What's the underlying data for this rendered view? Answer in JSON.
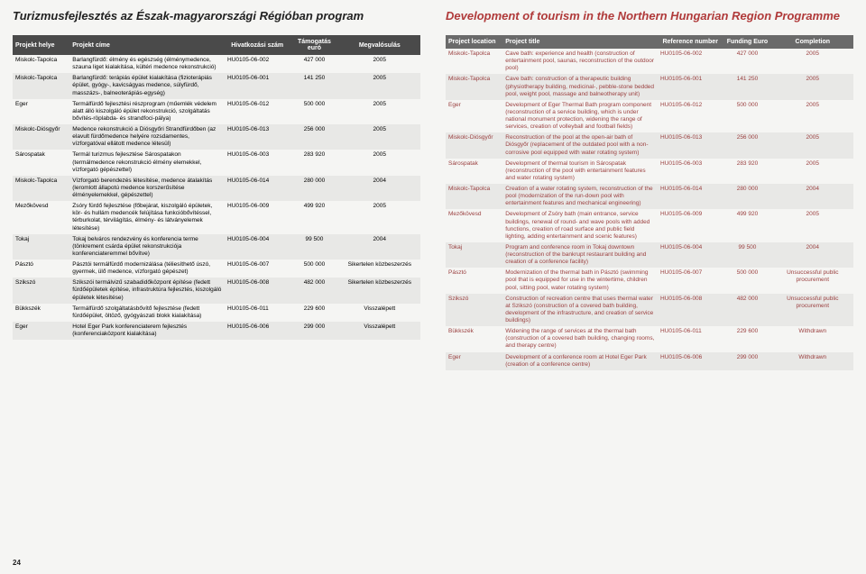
{
  "page_number": "24",
  "left": {
    "heading": "Turizmusfejlesztés az Észak-magyarországi Régióban program",
    "headers": [
      "Projekt helye",
      "Projekt címe",
      "Hivatkozási szám",
      "Támogatás euró",
      "Megvalósulás"
    ],
    "rows": [
      {
        "loc": "Miskolc-Tapolca",
        "title": "Barlangfürdő: élmény és egészség (élménymedence, szauna liget kialakítása, kültéri medence rekonstrukció)",
        "ref": "HU0105-06-002",
        "amt": "427 000",
        "stat": "2005",
        "stripe": false
      },
      {
        "loc": "Miskolc-Tapolca",
        "title": "Barlangfürdő: terápiás épület kialakítása (fizioterápiás épület, gyógy-, kavicságyas medence, súlyfürdő, masszázs-, balneoterápiás-egység)",
        "ref": "HU0105-06-001",
        "amt": "141 250",
        "stat": "2005",
        "stripe": true
      },
      {
        "loc": "Eger",
        "title": "Termálfürdő fejlesztési részprogram (műemlék védelem alatt álló kiszolgáló épület rekonstrukció, szolgáltatás bővítés-röplabda- és strandfoci-pálya)",
        "ref": "HU0105-06-012",
        "amt": "500 000",
        "stat": "2005",
        "stripe": false
      },
      {
        "loc": "Miskolc-Diósgyőr",
        "title": "Medence rekonstrukció a Diósgyőri Strandfürdőben (az elavult fürdőmedence helyére rozsdamentes, vízforgatóval ellátott medence létesül)",
        "ref": "HU0105-06-013",
        "amt": "256 000",
        "stat": "2005",
        "stripe": true
      },
      {
        "loc": "Sárospatak",
        "title": "Termál turizmus fejlesztése Sárospatakon (termálmedence rekonstrukció élmény elemekkel, vízforgató gépészettel)",
        "ref": "HU0105-06-003",
        "amt": "283 920",
        "stat": "2005",
        "stripe": false
      },
      {
        "loc": "Miskolc-Tapolca",
        "title": "Vízforgató berendezés létesítése, medence átalakítás (leromlott állapotú medence korszerűsítése élményelemekkel, gépészettel)",
        "ref": "HU0105-06-014",
        "amt": "280 000",
        "stat": "2004",
        "stripe": true
      },
      {
        "loc": "Mezőkövesd",
        "title": "Zsóry fürdő fejlesztése (főbejárat, kiszolgáló épületek, kör- és hullám medencék felújítása funkcióbővítéssel, térburkolat, térvilágítás, élmény- és látványelemek létesítése)",
        "ref": "HU0105-06-009",
        "amt": "499 920",
        "stat": "2005",
        "stripe": false
      },
      {
        "loc": "Tokaj",
        "title": "Tokaj belváros rendezvény és konferencia terme (tönkrement csárda épület rekonstrukciója konferenciateremmel bővítve)",
        "ref": "HU0105-06-004",
        "amt": "99 500",
        "stat": "2004",
        "stripe": true
      },
      {
        "loc": "Pásztó",
        "title": "Pásztói termálfürdő modernizálása (téliesíthető úszó, gyermek, ülő medence, vízforgató gépészet)",
        "ref": "HU0105-06-007",
        "amt": "500 000",
        "stat": "Sikertelen közbeszerzés",
        "stripe": false
      },
      {
        "loc": "Szikszó",
        "title": "Szikszói termálvizű szabadidőközpont építése (fedett fürdőépületek építése, infrastruktúra fejlesztés, kiszolgáló épületek létesítése)",
        "ref": "HU0105-06-008",
        "amt": "482 000",
        "stat": "Sikertelen közbeszerzés",
        "stripe": true
      },
      {
        "loc": "Bükkszék",
        "title": "Termálfürdő szolgáltatásbővítő fejlesztése (fedett fürdőépület, öltöző, gyógyászati blokk kialakítása)",
        "ref": "HU0105-06-011",
        "amt": "229 600",
        "stat": "Visszalépett",
        "stripe": false
      },
      {
        "loc": "Eger",
        "title": "Hotel Eger Park konferenciaterem fejlesztés (konferenciaközpont kialakítása)",
        "ref": "HU0105-06-006",
        "amt": "299 000",
        "stat": "Visszalépett",
        "stripe": true
      }
    ]
  },
  "right": {
    "heading": "Development of tourism in the Northern Hungarian Region Programme",
    "headers": [
      "Project location",
      "Project title",
      "Reference number",
      "Funding Euro",
      "Completion"
    ],
    "rows": [
      {
        "loc": "Miskolc-Tapolca",
        "title": "Cave bath: experience and health (construction of entertainment pool, saunas, reconstruction of the outdoor pool)",
        "ref": "HU0105-06-002",
        "amt": "427 000",
        "stat": "2005",
        "stripe": false
      },
      {
        "loc": "Miskolc-Tapolca",
        "title": "Cave bath: construction of a therapeutic building (physiotherapy building, medicinal-, pebble-stone bedded pool, weight pool, massage and balneotherapy unit)",
        "ref": "HU0105-06-001",
        "amt": "141 250",
        "stat": "2005",
        "stripe": true
      },
      {
        "loc": "Eger",
        "title": "Development of Eger Thermal Bath program component (reconstruction of a service building, which is under national monument protection, widening the range of services, creation of volleyball and football fields)",
        "ref": "HU0105-06-012",
        "amt": "500 000",
        "stat": "2005",
        "stripe": false
      },
      {
        "loc": "Miskolc-Diósgyőr",
        "title": "Reconstruction of the pool at the open-air bath of Diósgyőr (replacement of the outdated pool with a non-corrosive pool equipped with water rotating system)",
        "ref": "HU0105-06-013",
        "amt": "256 000",
        "stat": "2005",
        "stripe": true
      },
      {
        "loc": "Sárospatak",
        "title": "Development of thermal tourism in Sárospatak (reconstruction of the pool with entertainment features and water rotating system)",
        "ref": "HU0105-06-003",
        "amt": "283 920",
        "stat": "2005",
        "stripe": false
      },
      {
        "loc": "Miskolc-Tapolca",
        "title": "Creation of a water rotating system, reconstruction of the pool (modernization of the run-down pool with entertainment features and mechanical engineering)",
        "ref": "HU0105-06-014",
        "amt": "280 000",
        "stat": "2004",
        "stripe": true
      },
      {
        "loc": "Mezőkövesd",
        "title": "Development of Zsóry bath (main entrance, service buildings, renewal of round- and wave pools with added functions, creation of road surface and public field lighting, adding entertainment and scenic features)",
        "ref": "HU0105-06-009",
        "amt": "499 920",
        "stat": "2005",
        "stripe": false
      },
      {
        "loc": "Tokaj",
        "title": "Program and conference room in Tokaj downtown (reconstruction of the bankrupt restaurant building and creation of a conference facility)",
        "ref": "HU0105-06-004",
        "amt": "99 500",
        "stat": "2004",
        "stripe": true
      },
      {
        "loc": "Pásztó",
        "title": "Modernization of the thermal bath in Pásztó (swimming pool that is equipped for use in the wintertime, children pool, sitting pool, water rotating system)",
        "ref": "HU0105-06-007",
        "amt": "500 000",
        "stat": "Unsuccessful public procurement",
        "stripe": false
      },
      {
        "loc": "Szikszó",
        "title": "Construction of recreation centre that uses thermal water at Szikszó (construction of a covered bath building, development of the infrastructure, and creation of service buildings)",
        "ref": "HU0105-06-008",
        "amt": "482 000",
        "stat": "Unsuccessful public procurement",
        "stripe": true
      },
      {
        "loc": "Bükkszék",
        "title": "Widening the range of services at the thermal bath (construction of a covered bath building, changing rooms, and therapy centre)",
        "ref": "HU0105-06-011",
        "amt": "229 600",
        "stat": "Withdrawn",
        "stripe": false
      },
      {
        "loc": "Eger",
        "title": "Development of a conference room at Hotel Eger Park (creation of a conference centre)",
        "ref": "HU0105-06-006",
        "amt": "299 000",
        "stat": "Withdrawn",
        "stripe": true
      }
    ]
  }
}
